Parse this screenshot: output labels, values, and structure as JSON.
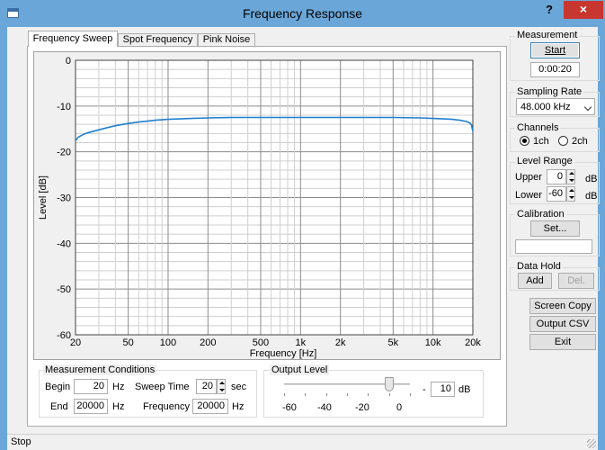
{
  "window": {
    "title": "Frequency Response",
    "help": "?",
    "close": "×"
  },
  "tabs": [
    {
      "label": "Frequency Sweep"
    },
    {
      "label": "Spot Frequency"
    },
    {
      "label": "Pink Noise"
    }
  ],
  "chart_data": {
    "type": "line",
    "xscale": "log",
    "xlim": [
      20,
      20000
    ],
    "ylim": [
      -60,
      0
    ],
    "xlabel": "Frequency [Hz]",
    "ylabel": "Level [dB]",
    "x_ticks": [
      "20",
      "50",
      "100",
      "200",
      "500",
      "1k",
      "2k",
      "5k",
      "10k",
      "20k"
    ],
    "y_ticks": [
      "0",
      "-10",
      "-20",
      "-30",
      "-40",
      "-50",
      "-60"
    ],
    "grid": true,
    "line_color": "#1f7fd0",
    "series": [
      {
        "x": [
          20,
          21,
          23,
          25,
          30,
          35,
          40,
          50,
          60,
          70,
          80,
          100,
          150,
          200,
          300,
          500,
          1000,
          2000,
          5000,
          8000,
          10000,
          12000,
          14000,
          16000,
          18000,
          19000,
          19500,
          20000
        ],
        "y": [
          -17.5,
          -16.8,
          -16.2,
          -15.8,
          -15.2,
          -14.7,
          -14.3,
          -13.8,
          -13.5,
          -13.3,
          -13.1,
          -12.9,
          -12.7,
          -12.6,
          -12.5,
          -12.5,
          -12.5,
          -12.5,
          -12.5,
          -12.6,
          -12.7,
          -12.8,
          -12.9,
          -13.1,
          -13.4,
          -13.7,
          -14.1,
          -15.5
        ]
      }
    ]
  },
  "measurement_conditions": {
    "title": "Measurement Conditions",
    "begin_label": "Begin",
    "begin_value": "20",
    "begin_unit": "Hz",
    "end_label": "End",
    "end_value": "20000",
    "end_unit": "Hz",
    "sweep_label": "Sweep Time",
    "sweep_value": "20",
    "sweep_unit": "sec",
    "freq_label": "Frequency",
    "freq_value": "20000",
    "freq_unit": "Hz"
  },
  "output_level": {
    "title": "Output Level",
    "scale": [
      "-60",
      "-40",
      "-20",
      "0"
    ],
    "value_prefix": "-",
    "value": "10",
    "unit": "dB",
    "slider_min": -60,
    "slider_max": 0,
    "slider_value": -10
  },
  "measurement": {
    "title": "Measurement",
    "start_label": "Start",
    "elapsed": "0:00:20"
  },
  "sampling": {
    "title": "Sampling Rate",
    "value": "48.000 kHz"
  },
  "channels": {
    "title": "Channels",
    "ch1": "1ch",
    "ch2": "2ch",
    "selected": "1ch"
  },
  "level_range": {
    "title": "Level Range",
    "upper_label": "Upper",
    "upper_value": "0",
    "upper_unit": "dB",
    "lower_label": "Lower",
    "lower_value": "-60",
    "lower_unit": "dB"
  },
  "calibration": {
    "title": "Calibration",
    "set_label": "Set...",
    "value": ""
  },
  "data_hold": {
    "title": "Data Hold",
    "add_label": "Add",
    "del_label": "Del."
  },
  "actions": {
    "screen_copy": "Screen Copy",
    "output_csv": "Output CSV",
    "exit": "Exit"
  },
  "status": {
    "text": "Stop"
  }
}
